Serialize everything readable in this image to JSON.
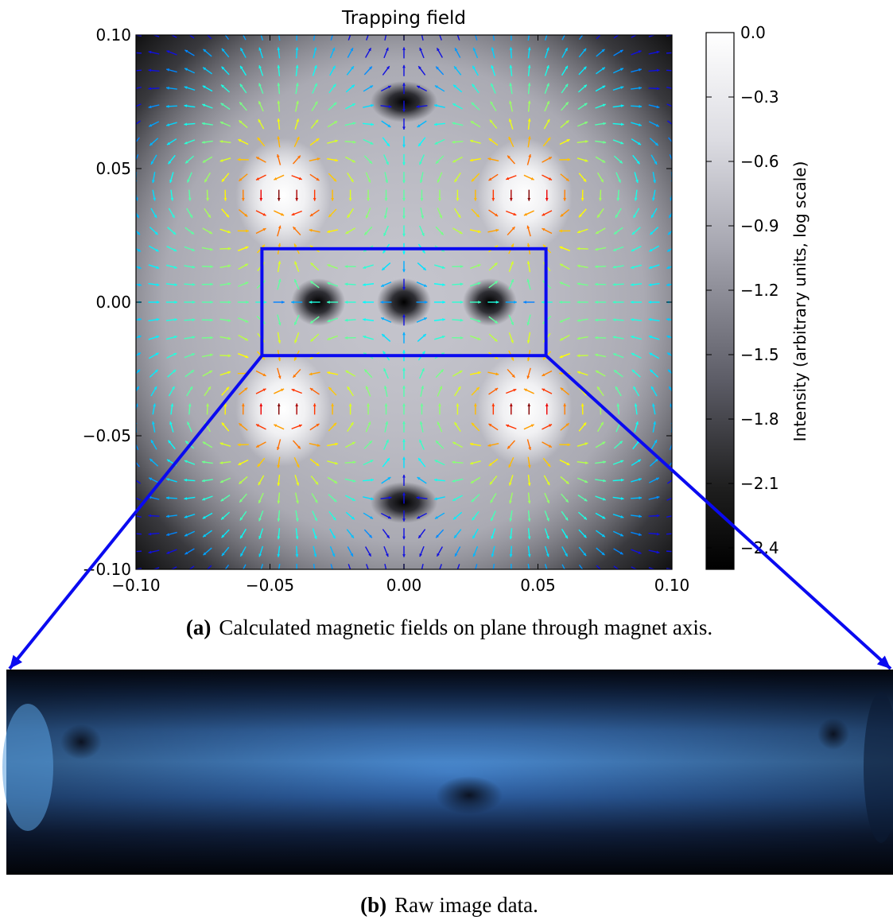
{
  "chart_data": {
    "type": "heatmap",
    "title": "Trapping field",
    "xlim": [
      -0.1,
      0.1
    ],
    "ylim": [
      -0.1,
      0.1
    ],
    "x_ticks": [
      "−0.10",
      "−0.05",
      "0.00",
      "0.05",
      "0.10"
    ],
    "y_ticks": [
      "0.10",
      "0.05",
      "0.00",
      "−0.05",
      "−0.10"
    ],
    "colorbar": {
      "label": "Intensity (arbitrary units, log scale)",
      "range": [
        -2.5,
        0.0
      ],
      "colormap": "gray",
      "ticks": [
        "0.0",
        "−0.3",
        "−0.6",
        "−0.9",
        "−1.2",
        "−1.5",
        "−1.8",
        "−2.1",
        "−2.4"
      ]
    },
    "field_sources": [
      {
        "x": -0.045,
        "y": 0.04
      },
      {
        "x": 0.045,
        "y": 0.04
      },
      {
        "x": -0.045,
        "y": -0.04
      },
      {
        "x": 0.045,
        "y": -0.04
      }
    ],
    "field_minima": [
      {
        "x": 0.0,
        "y": 0.075
      },
      {
        "x": 0.0,
        "y": -0.075
      },
      {
        "x": -0.032,
        "y": 0.0
      },
      {
        "x": 0.0,
        "y": 0.0
      },
      {
        "x": 0.032,
        "y": 0.0
      }
    ],
    "quiver_colormap": "jet",
    "zoom_region": {
      "x": [
        -0.053,
        0.053
      ],
      "y": [
        -0.02,
        0.02
      ]
    },
    "grid": false
  },
  "captions": {
    "a_tag": "(a)",
    "a_text": "Calculated magnetic fields on plane through magnet axis.",
    "b_tag": "(b)",
    "b_text": "Raw image data."
  },
  "colors": {
    "zoom_box": "#0a0af0",
    "arrow_low": "#1010e0"
  }
}
